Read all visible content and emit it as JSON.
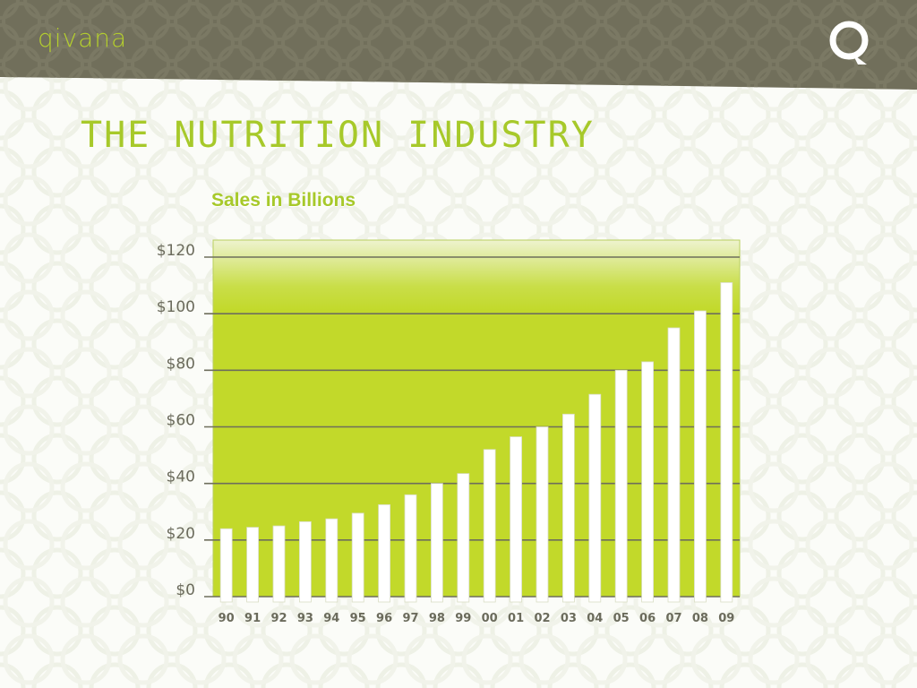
{
  "header": {
    "brand": "qivana",
    "logo_icon": "q-logo-icon",
    "band_color": "#716f5b",
    "brand_color": "#b5cf2e"
  },
  "slide": {
    "title": "THE NUTRITION INDUSTRY"
  },
  "chart_data": {
    "type": "bar",
    "title": "Sales in Billions",
    "xlabel": "",
    "ylabel": "",
    "categories": [
      "90",
      "91",
      "92",
      "93",
      "94",
      "95",
      "96",
      "97",
      "98",
      "99",
      "00",
      "01",
      "02",
      "03",
      "04",
      "05",
      "06",
      "07",
      "08",
      "09"
    ],
    "values": [
      24,
      24.5,
      25,
      26.5,
      27.5,
      29.5,
      32.5,
      36,
      40,
      43.5,
      52,
      56.5,
      60,
      64.5,
      71.5,
      80,
      83,
      95,
      101,
      111
    ],
    "ylim": [
      0,
      120
    ],
    "yticks": [
      "$0",
      "$20",
      "$40",
      "$60",
      "$80",
      "$100",
      "$120"
    ],
    "ytick_values": [
      0,
      20,
      40,
      60,
      80,
      100,
      120
    ],
    "grid": true,
    "plot_color": "#c2d92a",
    "bar_color": "#ffffff",
    "gridline_color": "#6e6e5c"
  }
}
